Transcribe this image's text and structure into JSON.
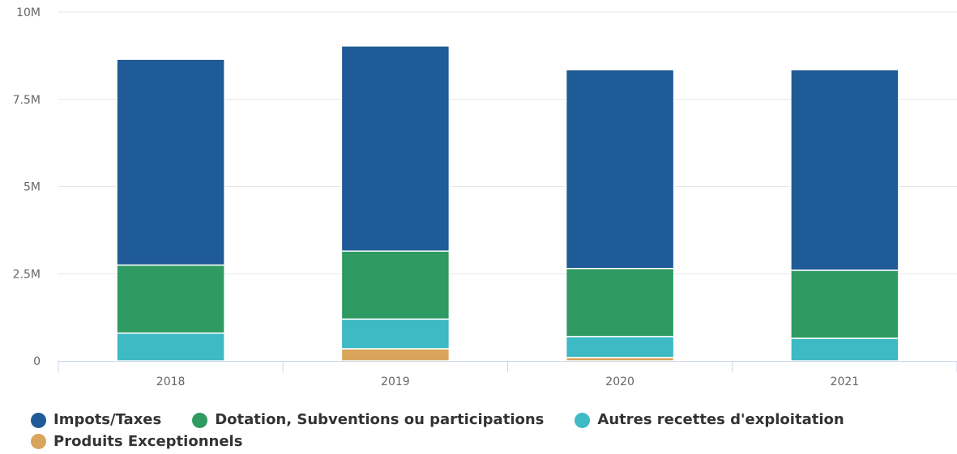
{
  "chart_data": {
    "type": "bar",
    "stacked": true,
    "categories": [
      "2018",
      "2019",
      "2020",
      "2021"
    ],
    "series": [
      {
        "name": "Impots/Taxes",
        "color": "#1f5b96",
        "values": [
          5900000,
          5880000,
          5700000,
          5750000
        ]
      },
      {
        "name": "Dotation, Subventions ou participations",
        "color": "#2f9a62",
        "values": [
          1950000,
          1950000,
          1950000,
          1950000
        ]
      },
      {
        "name": "Autres recettes d'exploitation",
        "color": "#3dbac4",
        "values": [
          800000,
          850000,
          600000,
          650000
        ]
      },
      {
        "name": "Produits Exceptionnels",
        "color": "#d9a55b",
        "values": [
          0,
          350000,
          100000,
          0
        ]
      }
    ],
    "y_ticks": [
      "0",
      "2.5M",
      "5M",
      "7.5M",
      "10M"
    ],
    "y_tick_values": [
      0,
      2500000,
      5000000,
      7500000,
      10000000
    ],
    "ylim": [
      0,
      10000000
    ],
    "grid": true,
    "legend_position": "bottom-left"
  }
}
